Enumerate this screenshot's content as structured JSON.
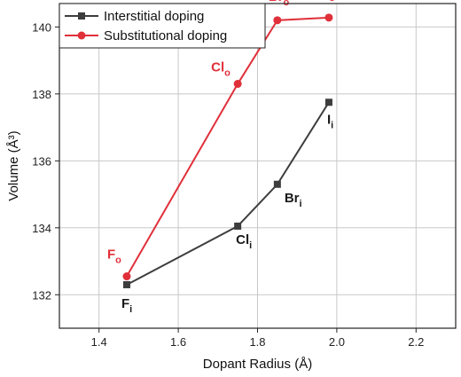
{
  "chart_data": {
    "type": "line",
    "xlabel": "Dopant Radius (Å)",
    "ylabel": "Volume (Å³)",
    "xlim": [
      1.3,
      2.3
    ],
    "ylim": [
      131,
      140.7
    ],
    "xticks": [
      1.4,
      1.6,
      1.8,
      2.0,
      2.2
    ],
    "xtick_labels": [
      "1.4",
      "1.6",
      "1.8",
      "2.0",
      "2.2"
    ],
    "yticks": [
      132,
      134,
      136,
      138,
      140
    ],
    "ytick_labels": [
      "132",
      "134",
      "136",
      "138",
      "140"
    ],
    "grid": true,
    "legend_position": "top-left",
    "series": [
      {
        "name": "Interstitial doping",
        "color": "#3d3d3d",
        "marker": "square",
        "points": [
          {
            "x": 1.47,
            "y": 132.3,
            "label_base": "F",
            "label_sub": "i"
          },
          {
            "x": 1.75,
            "y": 134.05,
            "label_base": "Cl",
            "label_sub": "i"
          },
          {
            "x": 1.85,
            "y": 135.3,
            "label_base": "Br",
            "label_sub": "i"
          },
          {
            "x": 1.98,
            "y": 137.75,
            "label_base": "I",
            "label_sub": "i"
          }
        ]
      },
      {
        "name": "Substitutional doping",
        "color": "#e0303a",
        "marker": "circle",
        "points": [
          {
            "x": 1.47,
            "y": 132.55,
            "label_base": "F",
            "label_sub": "o"
          },
          {
            "x": 1.75,
            "y": 138.3,
            "label_base": "Cl",
            "label_sub": "o"
          },
          {
            "x": 1.85,
            "y": 140.2,
            "label_base": "Br",
            "label_sub": "o"
          },
          {
            "x": 1.98,
            "y": 140.28,
            "label_base": "I",
            "label_sub": "o"
          }
        ]
      }
    ]
  }
}
